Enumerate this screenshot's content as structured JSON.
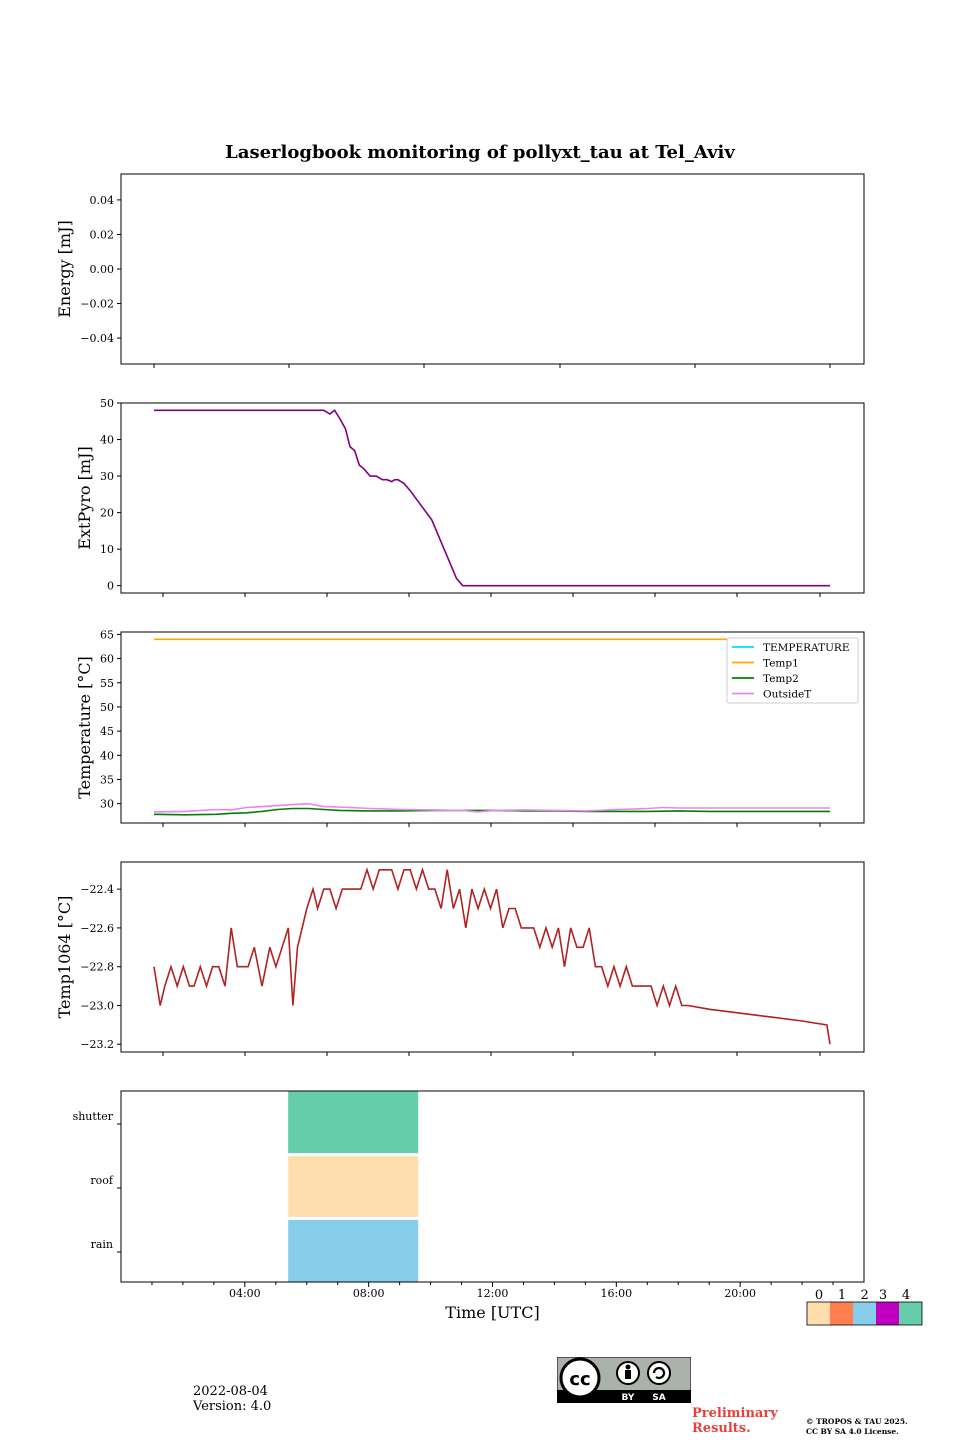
{
  "chart_data": [
    {
      "type": "line",
      "title": "Laserlogbook monitoring of pollyxt_tau at Tel_Aviv",
      "ylabel": "Energy [mJ]",
      "ylim": [
        -0.055,
        0.055
      ],
      "yticks": [
        0.04,
        0.02,
        0.0,
        -0.02,
        -0.04
      ],
      "ytick_labels": [
        "0.04",
        "0.02",
        "0.00",
        "−0.02",
        "−0.04"
      ],
      "series": []
    },
    {
      "type": "line",
      "ylabel": "ExtPyro [mJ]",
      "ylim": [
        -2,
        50
      ],
      "yticks": [
        50,
        40,
        30,
        20,
        10,
        0
      ],
      "ytick_labels": [
        "50",
        "40",
        "30",
        "20",
        "10",
        "0"
      ],
      "series": [
        {
          "color": "#800080",
          "x": [
            1.0,
            2.0,
            3.0,
            4.0,
            5.0,
            6.0,
            6.5,
            6.7,
            6.85,
            7.0,
            7.2,
            7.35,
            7.5,
            7.65,
            7.8,
            8.0,
            8.2,
            8.4,
            8.55,
            8.7,
            8.8,
            8.9,
            9.0,
            9.1,
            9.3,
            10.0,
            10.8,
            11.0,
            12.0,
            14.0,
            16.0,
            18.0,
            20.0,
            22.0,
            22.9
          ],
          "y": [
            48,
            48,
            48,
            48,
            48,
            48,
            48,
            47,
            48,
            46,
            43,
            38,
            37,
            33,
            32,
            30,
            30,
            29,
            29,
            28.5,
            29,
            29,
            28.5,
            28,
            26,
            18,
            2,
            0,
            0,
            0,
            0,
            0,
            0,
            0,
            0
          ]
        }
      ]
    },
    {
      "type": "line",
      "ylabel": "Temperature [°C]",
      "ylim": [
        26,
        65.5
      ],
      "yticks": [
        65,
        60,
        55,
        50,
        45,
        40,
        35,
        30
      ],
      "ytick_labels": [
        "65",
        "60",
        "55",
        "50",
        "45",
        "40",
        "35",
        "30"
      ],
      "legend_position": "top-right",
      "series": [
        {
          "name": "TEMPERATURE",
          "color": "#00e5e5",
          "x": [],
          "y": []
        },
        {
          "name": "Temp1",
          "color": "#ffa500",
          "x": [
            1.0,
            22.9
          ],
          "y": [
            64,
            64
          ]
        },
        {
          "name": "Temp2",
          "color": "#008000",
          "x": [
            1.0,
            2.0,
            3.0,
            3.5,
            4.0,
            4.5,
            5.0,
            5.5,
            6.0,
            6.5,
            7.0,
            8.0,
            9.0,
            10.0,
            11.0,
            12.0,
            13.0,
            14.0,
            15.0,
            16.0,
            17.0,
            18.0,
            19.0,
            20.0,
            21.0,
            22.0,
            22.9
          ],
          "y": [
            27.8,
            27.7,
            27.8,
            28.0,
            28.1,
            28.4,
            28.8,
            29.0,
            29.0,
            28.8,
            28.6,
            28.5,
            28.5,
            28.6,
            28.6,
            28.6,
            28.5,
            28.5,
            28.4,
            28.4,
            28.4,
            28.5,
            28.4,
            28.4,
            28.4,
            28.4,
            28.4
          ]
        },
        {
          "name": "OutsideT",
          "color": "#ee82ee",
          "x": [
            1.0,
            2.0,
            3.0,
            3.5,
            4.0,
            4.5,
            5.0,
            5.5,
            6.0,
            6.5,
            7.0,
            8.0,
            9.0,
            10.0,
            11.0,
            11.5,
            12.0,
            13.0,
            14.0,
            15.0,
            16.0,
            17.0,
            17.5,
            18.0,
            19.0,
            20.0,
            21.0,
            22.0,
            22.9
          ],
          "y": [
            28.3,
            28.4,
            28.8,
            28.7,
            29.2,
            29.4,
            29.6,
            29.8,
            30.0,
            29.4,
            29.3,
            29.0,
            28.8,
            28.7,
            28.6,
            28.3,
            28.6,
            28.7,
            28.6,
            28.5,
            28.8,
            29.0,
            29.2,
            29.1,
            29.1,
            29.1,
            29.1,
            29.1,
            29.1
          ]
        }
      ]
    },
    {
      "type": "line",
      "ylabel": "Temp1064 [°C]",
      "ylim": [
        -23.24,
        -22.26
      ],
      "yticks": [
        -22.4,
        -22.6,
        -22.8,
        -23.0,
        -23.2
      ],
      "ytick_labels": [
        "−22.4",
        "−22.6",
        "−22.8",
        "−23.0",
        "−23.2"
      ],
      "series": [
        {
          "color": "#b22222",
          "x": [
            1.0,
            1.2,
            1.35,
            1.55,
            1.75,
            1.95,
            2.15,
            2.3,
            2.5,
            2.7,
            2.9,
            3.1,
            3.3,
            3.5,
            3.7,
            3.9,
            4.05,
            4.25,
            4.5,
            4.75,
            4.95,
            5.15,
            5.35,
            5.5,
            5.65,
            5.8,
            5.95,
            6.15,
            6.3,
            6.5,
            6.7,
            6.9,
            7.1,
            7.3,
            7.5,
            7.7,
            7.9,
            8.1,
            8.3,
            8.5,
            8.7,
            8.9,
            9.1,
            9.3,
            9.5,
            9.7,
            9.9,
            10.1,
            10.3,
            10.5,
            10.7,
            10.9,
            11.1,
            11.3,
            11.5,
            11.7,
            11.9,
            12.1,
            12.3,
            12.5,
            12.7,
            12.9,
            13.1,
            13.3,
            13.5,
            13.7,
            13.9,
            14.1,
            14.3,
            14.5,
            14.7,
            14.9,
            15.1,
            15.3,
            15.5,
            15.7,
            15.9,
            16.1,
            16.3,
            16.5,
            16.7,
            16.9,
            17.1,
            17.3,
            17.5,
            17.7,
            17.9,
            18.1,
            18.3,
            19.0,
            20.0,
            21.0,
            22.0,
            22.8,
            22.9
          ],
          "y": [
            -22.8,
            -23.0,
            -22.9,
            -22.8,
            -22.9,
            -22.8,
            -22.9,
            -22.9,
            -22.8,
            -22.9,
            -22.8,
            -22.8,
            -22.9,
            -22.6,
            -22.8,
            -22.8,
            -22.8,
            -22.7,
            -22.9,
            -22.7,
            -22.8,
            -22.7,
            -22.6,
            -23.0,
            -22.7,
            -22.6,
            -22.5,
            -22.4,
            -22.5,
            -22.4,
            -22.4,
            -22.5,
            -22.4,
            -22.4,
            -22.4,
            -22.4,
            -22.3,
            -22.4,
            -22.3,
            -22.3,
            -22.3,
            -22.4,
            -22.3,
            -22.3,
            -22.4,
            -22.3,
            -22.4,
            -22.4,
            -22.5,
            -22.3,
            -22.5,
            -22.4,
            -22.6,
            -22.4,
            -22.5,
            -22.4,
            -22.5,
            -22.4,
            -22.6,
            -22.5,
            -22.5,
            -22.6,
            -22.6,
            -22.6,
            -22.7,
            -22.6,
            -22.7,
            -22.6,
            -22.8,
            -22.6,
            -22.7,
            -22.7,
            -22.6,
            -22.8,
            -22.8,
            -22.9,
            -22.8,
            -22.9,
            -22.8,
            -22.9,
            -22.9,
            -22.9,
            -22.9,
            -23.0,
            -22.9,
            -23.0,
            -22.9,
            -23.0,
            -23.0,
            -23.02,
            -23.04,
            -23.06,
            -23.08,
            -23.1,
            -23.2
          ]
        }
      ]
    },
    {
      "type": "heatmap",
      "xlabel": "Time [UTC]",
      "xlim": [
        0,
        24
      ],
      "xticks": [
        4,
        8,
        12,
        16,
        20
      ],
      "xtick_labels": [
        "04:00",
        "08:00",
        "12:00",
        "16:00",
        "20:00"
      ],
      "rows": [
        "shutter",
        "roof",
        "rain"
      ],
      "blocks": [
        {
          "row": "shutter",
          "x0": 5.4,
          "x1": 9.6,
          "value": 4
        },
        {
          "row": "roof",
          "x0": 5.4,
          "x1": 9.6,
          "value": 0
        },
        {
          "row": "rain",
          "x0": 5.4,
          "x1": 9.6,
          "value": 2
        }
      ],
      "colorbar": {
        "labels": [
          "0",
          "1",
          "2",
          "3",
          "4"
        ],
        "colors": [
          "#fddeac",
          "#ff7f50",
          "#87ceeb",
          "#c000c0",
          "#66cdaa"
        ]
      }
    }
  ],
  "footer": {
    "date": "2022-08-04",
    "version": "Version: 4.0",
    "prelim_line1": "Preliminary",
    "prelim_line2": "Results.",
    "copyright_line1": "© TROPOS & TAU 2025.",
    "copyright_line2": "CC BY SA 4.0 License.",
    "license_badge": {
      "main": "cc",
      "by": "BY",
      "sa": "SA"
    }
  }
}
